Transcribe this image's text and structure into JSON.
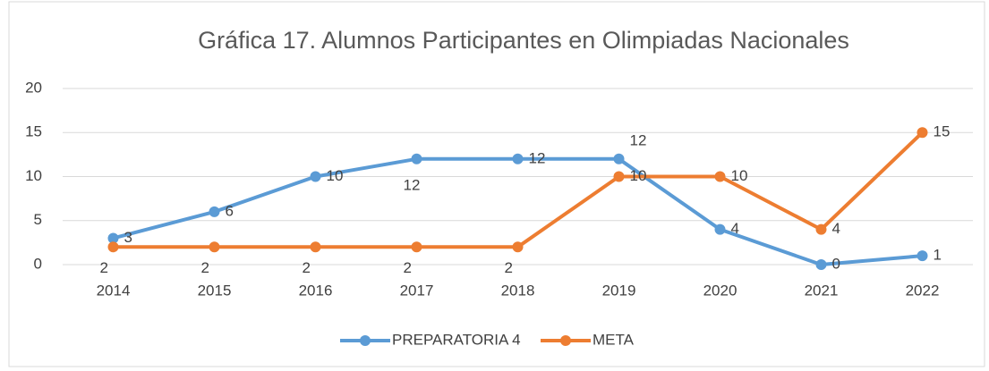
{
  "chart_data": {
    "type": "line",
    "title": "Gráfica 17. Alumnos Participantes en Olimpiadas Nacionales",
    "categories": [
      "2014",
      "2015",
      "2016",
      "2017",
      "2018",
      "2019",
      "2020",
      "2021",
      "2022"
    ],
    "series": [
      {
        "name": "PREPARATORIA 4",
        "color": "#5b9bd5",
        "values": [
          3,
          6,
          10,
          12,
          12,
          12,
          4,
          0,
          1
        ]
      },
      {
        "name": "META",
        "color": "#ed7d31",
        "values": [
          2,
          2,
          2,
          2,
          2,
          10,
          10,
          4,
          15
        ]
      }
    ],
    "ylim": [
      0,
      20
    ],
    "yticks": [
      0,
      5,
      10,
      15,
      20
    ],
    "grid": true,
    "legend": "bottom"
  }
}
